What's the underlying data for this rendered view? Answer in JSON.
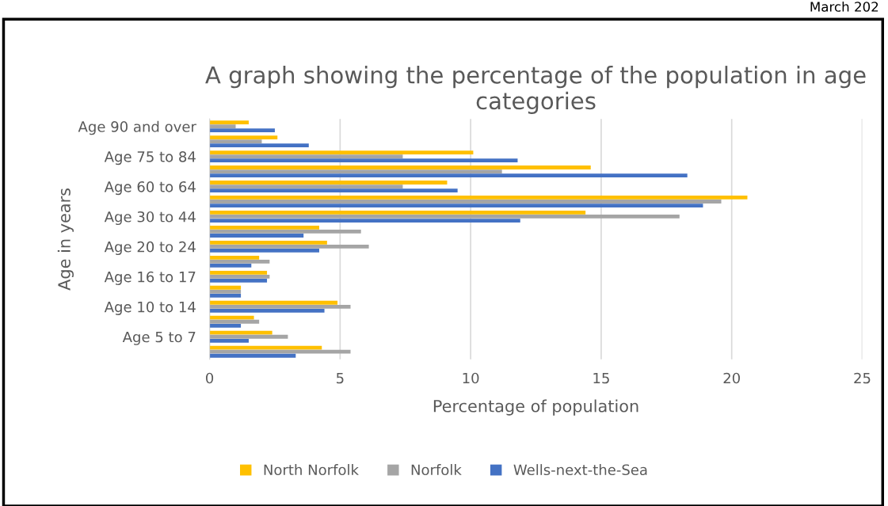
{
  "chart_data": {
    "type": "bar",
    "orientation": "horizontal",
    "title": "A graph showing the percentage of the population in age categories",
    "xlabel": "Percentage of population",
    "ylabel": "Age in years",
    "categories": [
      "Age 90 and over",
      null,
      "Age 75 to 84",
      null,
      "Age 60 to 64",
      null,
      "Age 30 to 44",
      null,
      "Age 20 to 24",
      null,
      "Age 16 to 17",
      null,
      "Age 10 to 14",
      null,
      "Age 5 to 7",
      null
    ],
    "series": [
      {
        "name": "North Norfolk",
        "color": "#ffc000",
        "values": [
          1.5,
          2.6,
          10.1,
          14.6,
          9.1,
          20.6,
          14.4,
          4.2,
          4.5,
          1.9,
          2.2,
          1.2,
          4.9,
          1.7,
          2.4,
          4.3
        ]
      },
      {
        "name": "Norfolk",
        "color": "#a5a5a5",
        "values": [
          1.0,
          2.0,
          7.4,
          11.2,
          7.4,
          19.6,
          18.0,
          5.8,
          6.1,
          2.3,
          2.3,
          1.2,
          5.4,
          1.9,
          3.0,
          5.4
        ]
      },
      {
        "name": "Wells-next-the-Sea",
        "color": "#4472c4",
        "values": [
          2.5,
          3.8,
          11.8,
          18.3,
          9.5,
          18.9,
          11.9,
          3.6,
          4.2,
          1.6,
          2.2,
          1.2,
          4.4,
          1.2,
          1.5,
          3.3
        ]
      }
    ],
    "xlim": [
      0,
      25
    ],
    "xticks": [
      0,
      5,
      10,
      15,
      20,
      25
    ],
    "grid": "x",
    "legend": "bottom",
    "annotations": [
      "March 202"
    ]
  }
}
